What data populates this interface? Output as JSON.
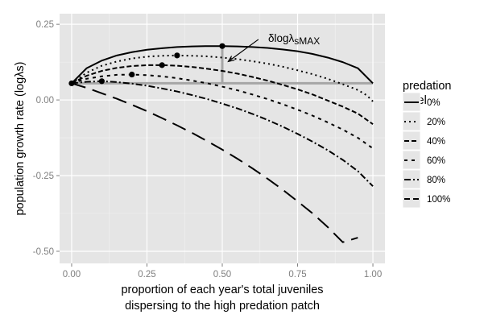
{
  "chart_data": {
    "type": "line",
    "xlabel_line1": "proportion of each year's total juveniles",
    "xlabel_line2": "dispersing to the high predation patch",
    "ylabel": "population growth rate (logλs)",
    "xlim": [
      -0.04,
      1.04
    ],
    "ylim": [
      -0.54,
      0.285
    ],
    "x_ticks": [
      0.0,
      0.25,
      0.5,
      0.75,
      1.0
    ],
    "x_tick_labels": [
      "0.00",
      "0.25",
      "0.50",
      "0.75",
      "1.00"
    ],
    "y_ticks": [
      -0.5,
      -0.25,
      0.0,
      0.25
    ],
    "y_tick_labels": [
      "-0.50",
      "-0.25",
      "0.00",
      "0.25"
    ],
    "grid": true,
    "legend": {
      "title_line1": "predation",
      "title_line2": "level",
      "placement": "right"
    },
    "series": [
      {
        "name": "0%",
        "x": [
          0.0,
          0.05,
          0.1,
          0.15,
          0.2,
          0.25,
          0.3,
          0.35,
          0.4,
          0.45,
          0.5,
          0.55,
          0.6,
          0.65,
          0.7,
          0.75,
          0.8,
          0.85,
          0.9,
          0.95,
          1.0
        ],
        "y": [
          0.055,
          0.105,
          0.13,
          0.147,
          0.158,
          0.166,
          0.171,
          0.175,
          0.177,
          0.178,
          0.178,
          0.177,
          0.175,
          0.172,
          0.167,
          0.161,
          0.152,
          0.14,
          0.125,
          0.105,
          0.055
        ]
      },
      {
        "name": "20%",
        "x": [
          0.0,
          0.05,
          0.1,
          0.15,
          0.2,
          0.25,
          0.3,
          0.35,
          0.4,
          0.45,
          0.5,
          0.55,
          0.6,
          0.65,
          0.7,
          0.75,
          0.8,
          0.85,
          0.9,
          0.95,
          0.98,
          1.0
        ],
        "y": [
          0.055,
          0.09,
          0.113,
          0.127,
          0.137,
          0.143,
          0.146,
          0.147,
          0.146,
          0.144,
          0.14,
          0.135,
          0.128,
          0.12,
          0.11,
          0.098,
          0.085,
          0.07,
          0.052,
          0.033,
          0.015,
          -0.005
        ]
      },
      {
        "name": "40%",
        "x": [
          0.0,
          0.05,
          0.1,
          0.15,
          0.2,
          0.25,
          0.3,
          0.35,
          0.4,
          0.45,
          0.5,
          0.55,
          0.6,
          0.65,
          0.7,
          0.75,
          0.8,
          0.85,
          0.9,
          0.95,
          1.0
        ],
        "y": [
          0.055,
          0.08,
          0.096,
          0.106,
          0.112,
          0.115,
          0.115,
          0.113,
          0.109,
          0.103,
          0.096,
          0.087,
          0.076,
          0.064,
          0.05,
          0.035,
          0.018,
          -0.002,
          -0.022,
          -0.045,
          -0.08
        ]
      },
      {
        "name": "60%",
        "x": [
          0.0,
          0.05,
          0.1,
          0.15,
          0.2,
          0.25,
          0.3,
          0.35,
          0.4,
          0.45,
          0.5,
          0.55,
          0.6,
          0.65,
          0.7,
          0.75,
          0.8,
          0.85,
          0.9,
          0.95,
          1.0
        ],
        "y": [
          0.055,
          0.07,
          0.078,
          0.083,
          0.084,
          0.082,
          0.078,
          0.072,
          0.064,
          0.055,
          0.044,
          0.032,
          0.018,
          0.003,
          -0.014,
          -0.032,
          -0.052,
          -0.074,
          -0.098,
          -0.125,
          -0.16
        ]
      },
      {
        "name": "80%",
        "x": [
          0.0,
          0.05,
          0.1,
          0.15,
          0.2,
          0.25,
          0.3,
          0.35,
          0.4,
          0.45,
          0.5,
          0.55,
          0.6,
          0.65,
          0.7,
          0.75,
          0.8,
          0.85,
          0.9,
          0.95,
          1.0
        ],
        "y": [
          0.055,
          0.06,
          0.062,
          0.059,
          0.054,
          0.047,
          0.038,
          0.028,
          0.016,
          0.003,
          -0.012,
          -0.028,
          -0.046,
          -0.066,
          -0.088,
          -0.112,
          -0.138,
          -0.166,
          -0.198,
          -0.235,
          -0.285
        ]
      },
      {
        "name": "100%",
        "x": [
          0.0,
          0.05,
          0.1,
          0.15,
          0.2,
          0.25,
          0.3,
          0.35,
          0.4,
          0.45,
          0.5,
          0.55,
          0.6,
          0.65,
          0.7,
          0.75,
          0.8,
          0.85,
          0.9,
          0.95
        ],
        "y": [
          0.055,
          0.04,
          0.022,
          0.004,
          -0.016,
          -0.037,
          -0.06,
          -0.084,
          -0.109,
          -0.136,
          -0.164,
          -0.194,
          -0.226,
          -0.26,
          -0.296,
          -0.335,
          -0.375,
          -0.42,
          -0.47,
          -0.455
        ]
      }
    ],
    "max_points": {
      "x": [
        0.0,
        0.1,
        0.2,
        0.3,
        0.35,
        0.5
      ],
      "y": [
        0.055,
        0.062,
        0.084,
        0.115,
        0.147,
        0.178
      ]
    },
    "reference_line": {
      "x": [
        0.0,
        1.0
      ],
      "y": [
        0.055,
        0.055
      ]
    },
    "delta_segment": {
      "x": 0.5,
      "y_from": 0.055,
      "y_to": 0.178
    },
    "annotation": {
      "text": "δlogλ",
      "subscript": "sMAX",
      "at": [
        0.525,
        0.215
      ],
      "arrow_from": [
        0.62,
        0.2
      ],
      "arrow_to": [
        0.52,
        0.127
      ]
    },
    "colors": {
      "panel": "#e5e5e5",
      "grid_major": "#ffffff",
      "grid_minor": "#f2f2f2",
      "line": "#000000",
      "reference": "#a6a6a6"
    }
  }
}
